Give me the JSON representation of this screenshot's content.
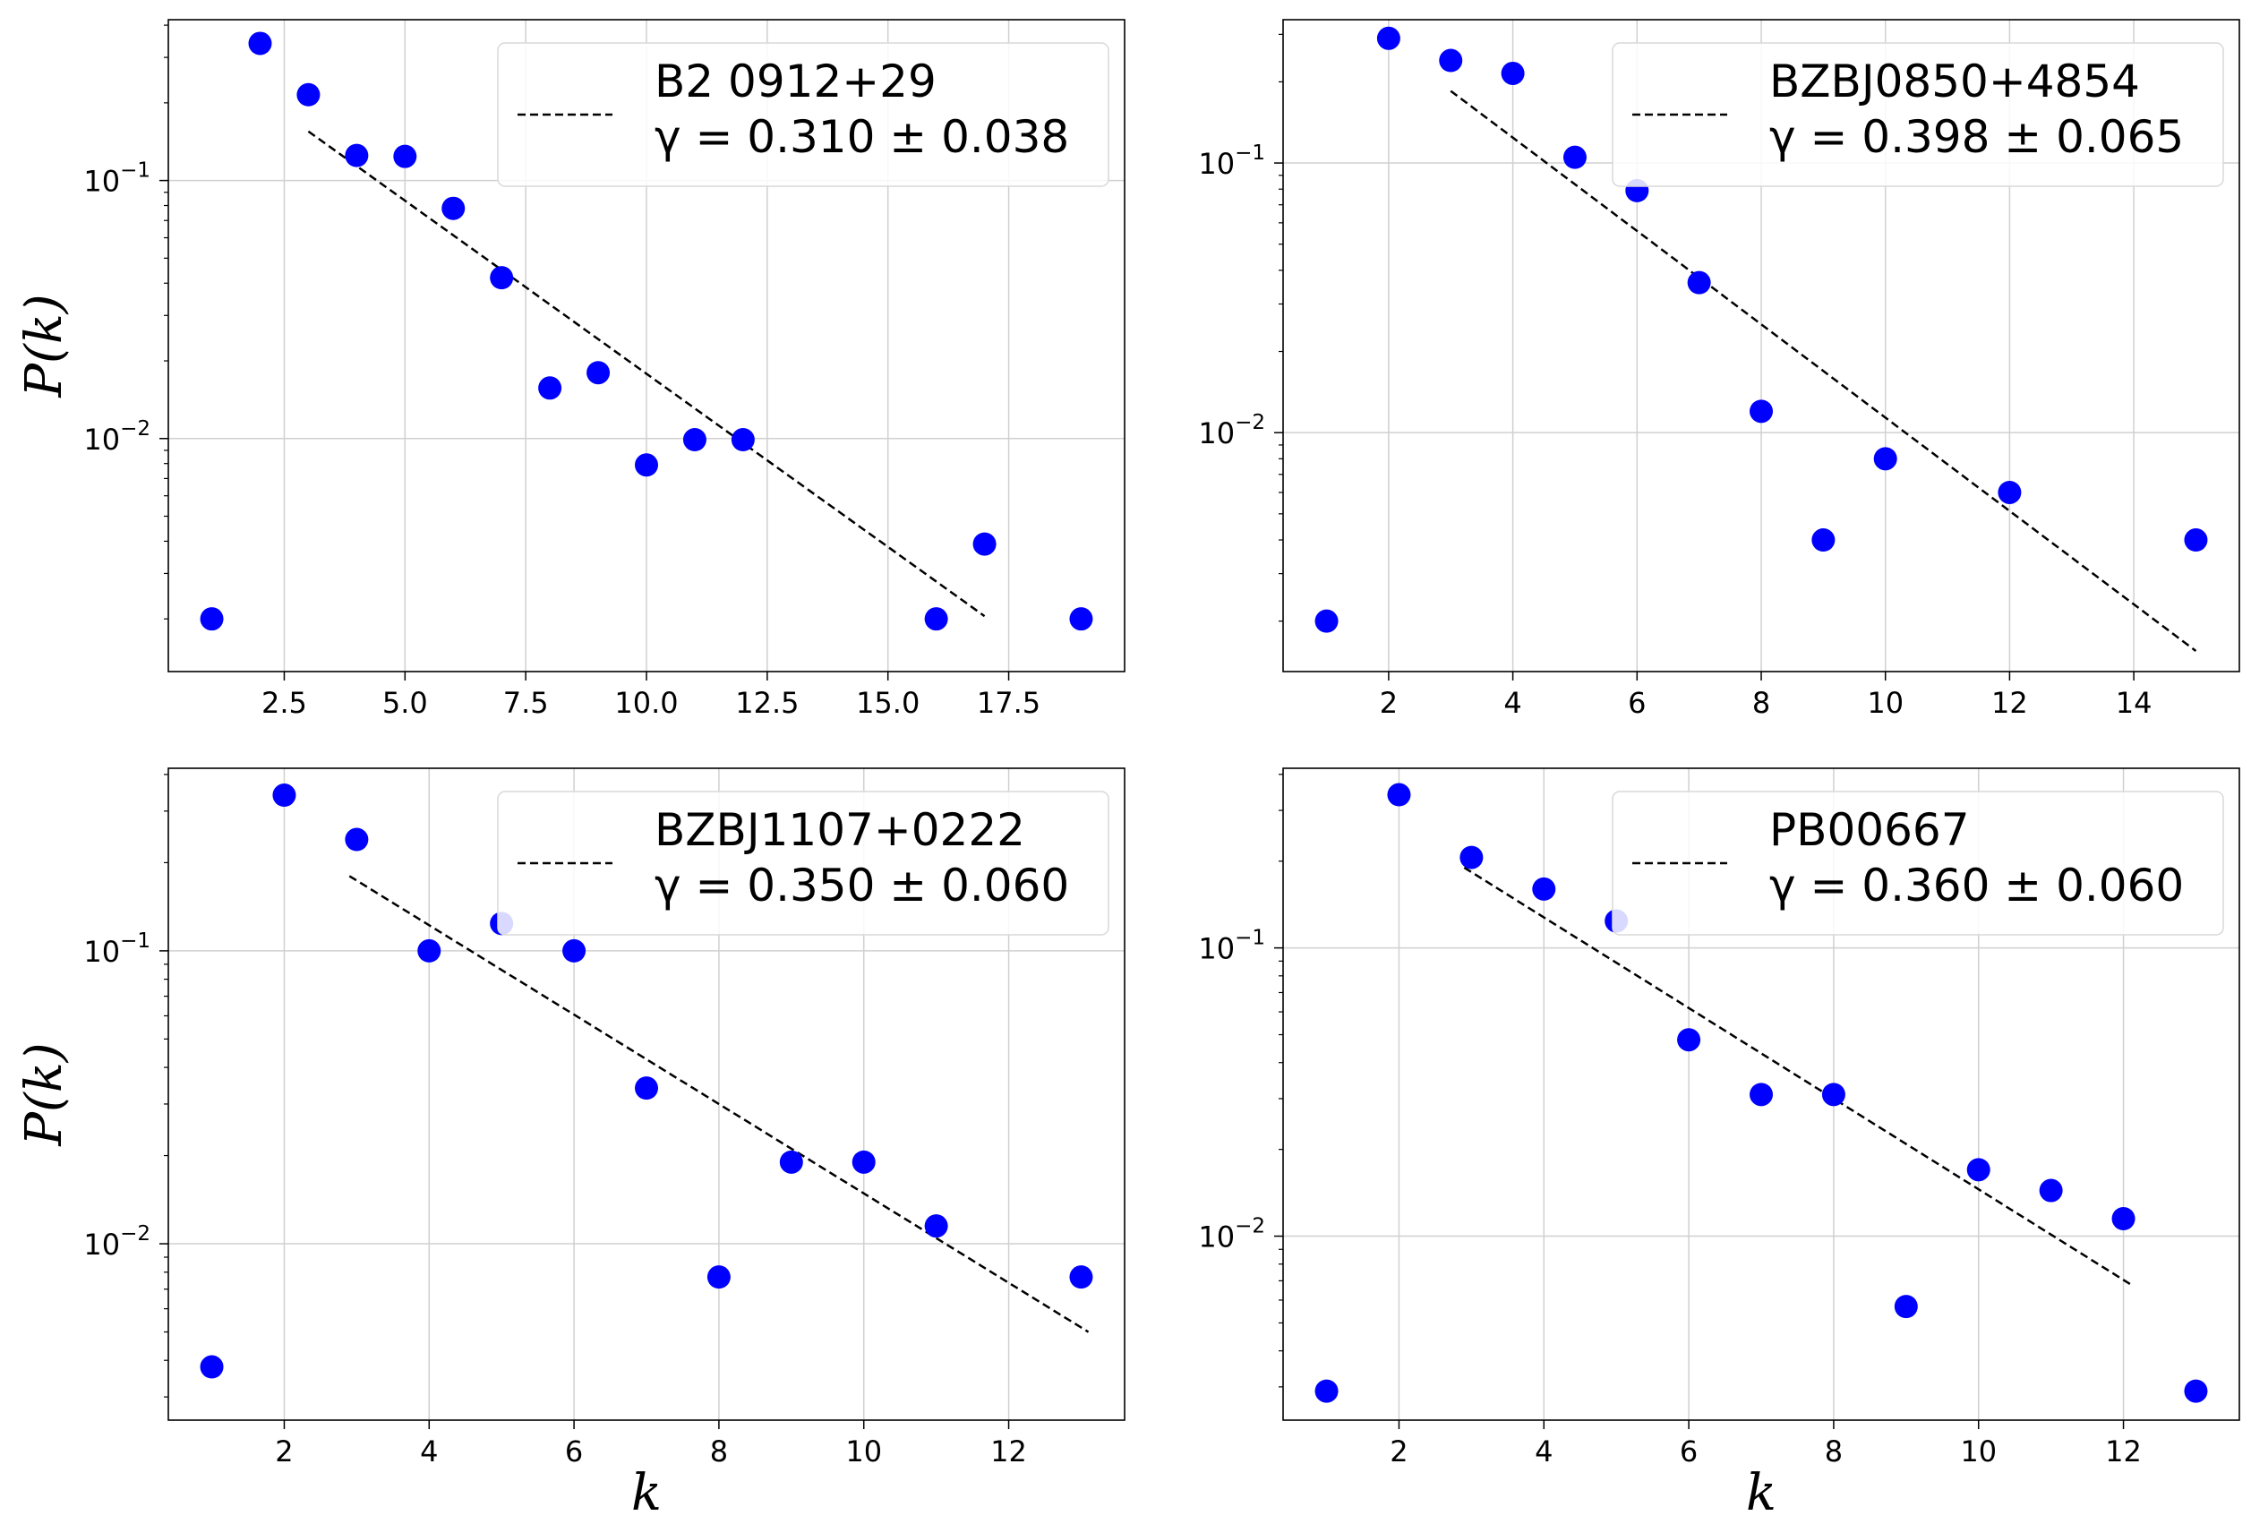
{
  "chart_data": [
    {
      "type": "scatter",
      "yscale": "log",
      "xlim": [
        0.1,
        19.9
      ],
      "ylim": [
        0.00125,
        0.42
      ],
      "xticks": [
        2.5,
        5.0,
        7.5,
        10.0,
        12.5,
        15.0,
        17.5
      ],
      "xtick_labels": [
        "2.5",
        "5.0",
        "7.5",
        "10.0",
        "12.5",
        "15.0",
        "17.5"
      ],
      "yticks": [
        0.01,
        0.1
      ],
      "ytick_exponents": [
        "−2",
        "−1"
      ],
      "xlabel": "",
      "ylabel": "P(k)",
      "grid": true,
      "legend_position": "top-right",
      "legend_label": "B2 0912+29",
      "gamma_label": "γ = 0.310 ± 0.038",
      "series": [
        {
          "name": "data",
          "x": [
            1,
            2,
            3,
            4,
            5,
            6,
            7,
            8,
            9,
            10,
            11,
            12,
            16,
            17,
            19
          ],
          "y": [
            0.002,
            0.34,
            0.215,
            0.125,
            0.124,
            0.078,
            0.042,
            0.0157,
            0.018,
            0.0079,
            0.0099,
            0.0099,
            0.002,
            0.0039,
            0.002
          ],
          "color": "#0000ff"
        },
        {
          "name": "fit",
          "style": "dashed",
          "x": [
            3,
            17
          ],
          "y": [
            0.155,
            0.00205
          ],
          "color": "#000000"
        }
      ]
    },
    {
      "type": "scatter",
      "yscale": "log",
      "xlim": [
        0.3,
        15.7
      ],
      "ylim": [
        0.0013,
        0.34
      ],
      "xticks": [
        2,
        4,
        6,
        8,
        10,
        12,
        14
      ],
      "xtick_labels": [
        "2",
        "4",
        "6",
        "8",
        "10",
        "12",
        "14"
      ],
      "yticks": [
        0.01,
        0.1
      ],
      "ytick_exponents": [
        "−2",
        "−1"
      ],
      "xlabel": "",
      "ylabel": "",
      "grid": true,
      "legend_position": "top-right",
      "legend_label": "BZBJ0850+4854",
      "gamma_label": "γ = 0.398 ± 0.065",
      "series": [
        {
          "name": "data",
          "x": [
            1,
            2,
            3,
            4,
            5,
            6,
            7,
            8,
            9,
            10,
            12,
            15
          ],
          "y": [
            0.002,
            0.29,
            0.24,
            0.215,
            0.105,
            0.079,
            0.036,
            0.012,
            0.004,
            0.008,
            0.006,
            0.004
          ],
          "color": "#0000ff"
        },
        {
          "name": "fit",
          "style": "dashed",
          "x": [
            3,
            15
          ],
          "y": [
            0.185,
            0.00155
          ],
          "color": "#000000"
        }
      ]
    },
    {
      "type": "scatter",
      "yscale": "log",
      "xlim": [
        0.4,
        13.6
      ],
      "ylim": [
        0.0025,
        0.42
      ],
      "xticks": [
        2,
        4,
        6,
        8,
        10,
        12
      ],
      "xtick_labels": [
        "2",
        "4",
        "6",
        "8",
        "10",
        "12"
      ],
      "yticks": [
        0.01,
        0.1
      ],
      "ytick_exponents": [
        "−2",
        "−1"
      ],
      "xlabel": "k",
      "ylabel": "P(k)",
      "grid": true,
      "legend_position": "top-right",
      "legend_label": "BZBJ1107+0222",
      "gamma_label": "γ = 0.350 ± 0.060",
      "series": [
        {
          "name": "data",
          "x": [
            1,
            2,
            3,
            4,
            5,
            6,
            7,
            8,
            9,
            10,
            11,
            13
          ],
          "y": [
            0.0038,
            0.34,
            0.24,
            0.1,
            0.124,
            0.1,
            0.034,
            0.0077,
            0.019,
            0.019,
            0.0115,
            0.0077
          ],
          "color": "#0000ff"
        },
        {
          "name": "fit",
          "style": "dashed",
          "x": [
            2.9,
            13.1
          ],
          "y": [
            0.18,
            0.005
          ],
          "color": "#000000"
        }
      ]
    },
    {
      "type": "scatter",
      "yscale": "log",
      "xlim": [
        0.4,
        13.6
      ],
      "ylim": [
        0.0023,
        0.42
      ],
      "xticks": [
        2,
        4,
        6,
        8,
        10,
        12
      ],
      "xtick_labels": [
        "2",
        "4",
        "6",
        "8",
        "10",
        "12"
      ],
      "yticks": [
        0.01,
        0.1
      ],
      "ytick_exponents": [
        "−2",
        "−1"
      ],
      "xlabel": "k",
      "ylabel": "",
      "grid": true,
      "legend_position": "top-right",
      "legend_label": "PB00667",
      "gamma_label": "γ = 0.360 ± 0.060",
      "series": [
        {
          "name": "data",
          "x": [
            1,
            2,
            3,
            4,
            5,
            6,
            7,
            8,
            9,
            10,
            11,
            12,
            13
          ],
          "y": [
            0.0029,
            0.34,
            0.206,
            0.16,
            0.124,
            0.048,
            0.031,
            0.031,
            0.0057,
            0.017,
            0.0144,
            0.0115,
            0.0029
          ],
          "color": "#0000ff"
        },
        {
          "name": "fit",
          "style": "dashed",
          "x": [
            2.9,
            12.1
          ],
          "y": [
            0.19,
            0.0068
          ],
          "color": "#000000"
        }
      ]
    }
  ]
}
